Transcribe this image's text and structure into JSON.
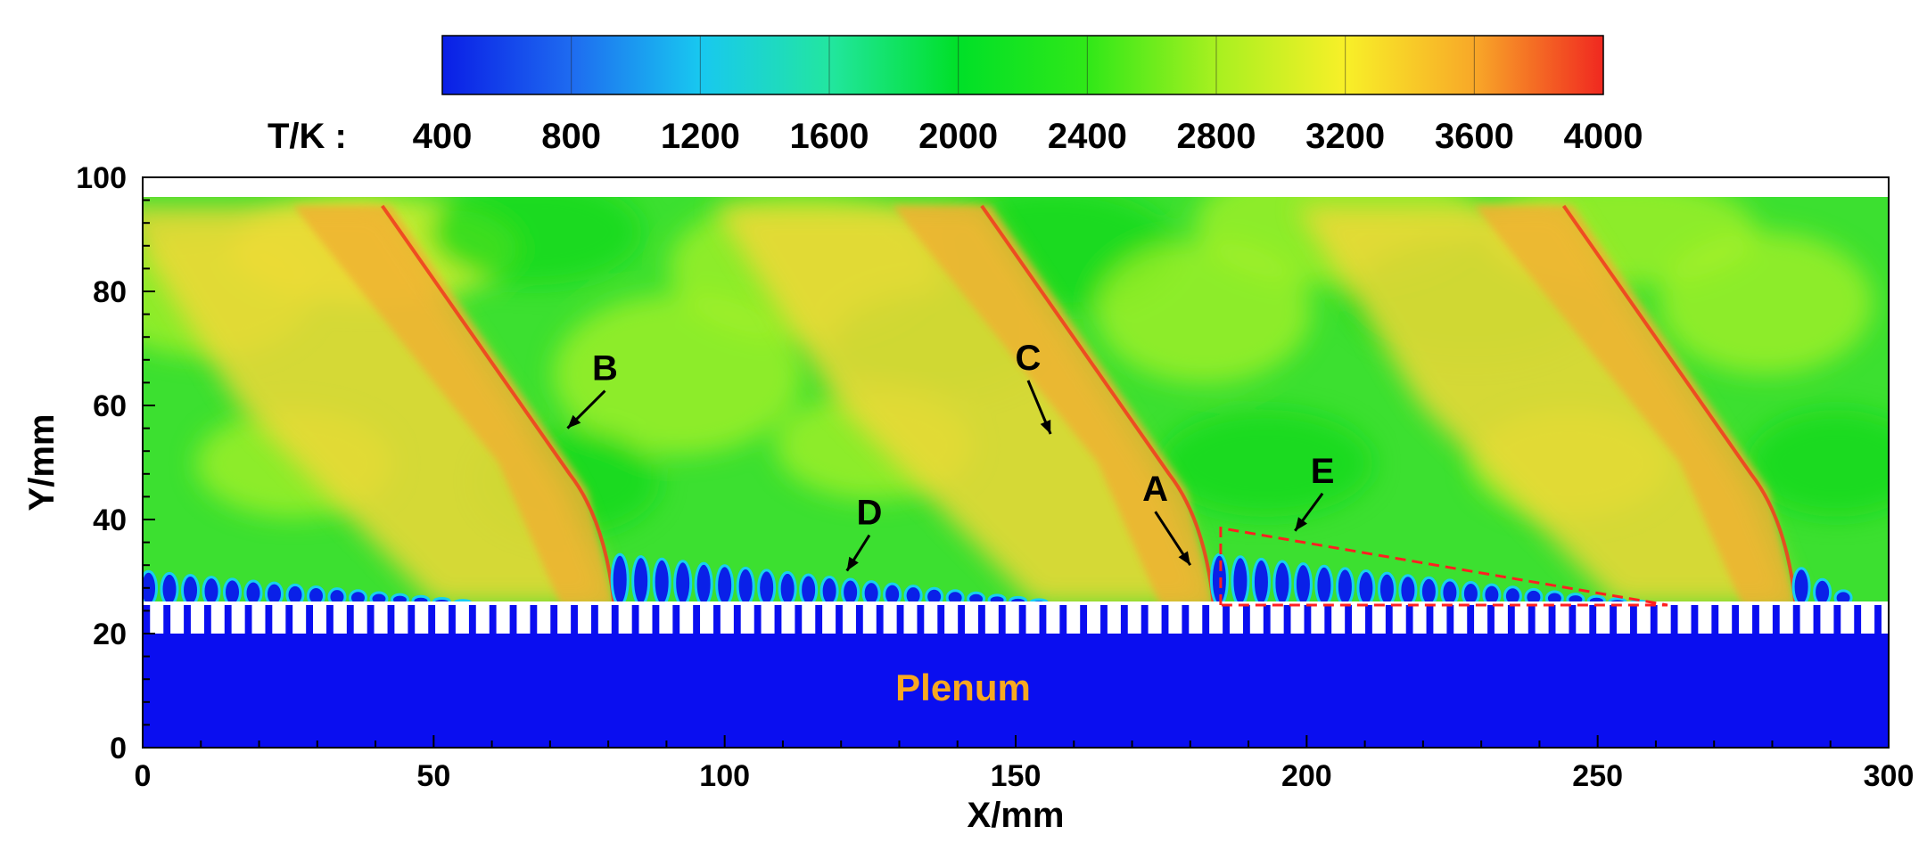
{
  "chart_data": {
    "type": "heatmap",
    "title": "",
    "xlabel": "X/mm",
    "ylabel": "Y/mm",
    "xlim": [
      0,
      300
    ],
    "ylim": [
      0,
      100
    ],
    "x_ticks": [
      "0",
      "50",
      "100",
      "150",
      "200",
      "250",
      "300"
    ],
    "y_ticks": [
      "0",
      "20",
      "40",
      "60",
      "80",
      "100"
    ],
    "colorbar": {
      "label": "T/K :",
      "min": 400,
      "max": 4000,
      "ticks": [
        "400",
        "800",
        "1200",
        "1600",
        "2000",
        "2400",
        "2800",
        "3200",
        "3600",
        "4000"
      ],
      "colors": [
        "#0a1ee6",
        "#1e6bf0",
        "#18c8f0",
        "#22e6a0",
        "#00e028",
        "#30e818",
        "#a8f020",
        "#f8f028",
        "#f8a828",
        "#f02820"
      ]
    },
    "domain": {
      "plenum_label": "Plenum",
      "plenum_y_range": [
        0,
        20
      ],
      "injector_y_range": [
        20,
        25
      ],
      "chamber_y_range": [
        25,
        95
      ],
      "plenum_temperature": 400,
      "chamber_background_temperature": 2200
    },
    "detonation_fronts_x": [
      81,
      184,
      284
    ],
    "annotations": [
      {
        "label": "A",
        "x": 180,
        "y": 32
      },
      {
        "label": "B",
        "x": 73,
        "y": 56
      },
      {
        "label": "C",
        "x": 156,
        "y": 55
      },
      {
        "label": "D",
        "x": 121,
        "y": 31
      },
      {
        "label": "E",
        "x": 198,
        "y": 38
      }
    ],
    "label_color": "#f8a820"
  }
}
